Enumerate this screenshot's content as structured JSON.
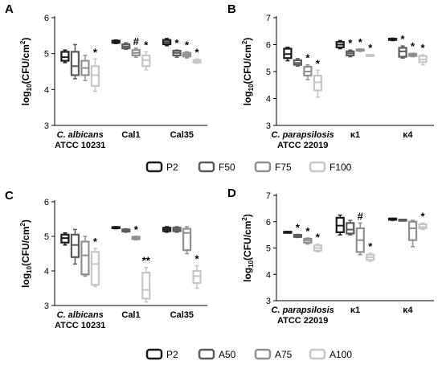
{
  "figure": {
    "legend_top": [
      {
        "label": "P2",
        "color": "#1a1a1a"
      },
      {
        "label": "F50",
        "color": "#5a5a5a"
      },
      {
        "label": "F75",
        "color": "#8f8f8f"
      },
      {
        "label": "F100",
        "color": "#c6c6c6"
      }
    ],
    "legend_bottom": [
      {
        "label": "P2",
        "color": "#1a1a1a"
      },
      {
        "label": "A50",
        "color": "#5a5a5a"
      },
      {
        "label": "A75",
        "color": "#8f8f8f"
      },
      {
        "label": "A100",
        "color": "#c6c6c6"
      }
    ]
  },
  "chart_data": [
    {
      "type": "boxplot",
      "panel": "A",
      "ylabel": "log10(CFU/cm2)",
      "ylim": [
        3,
        6
      ],
      "yticks": [
        3,
        4,
        5,
        6
      ],
      "groups": [
        {
          "label": "C. albicans",
          "label2": "ATCC 10231",
          "italic": true
        },
        {
          "label": "Cal1"
        },
        {
          "label": "Cal35"
        }
      ],
      "series": [
        {
          "name": "P2",
          "boxes": [
            {
              "min": 4.75,
              "q1": 4.8,
              "median": 4.9,
              "q3": 5.05,
              "max": 5.1
            },
            {
              "min": 5.28,
              "q1": 5.3,
              "median": 5.32,
              "q3": 5.36,
              "max": 5.38
            },
            {
              "min": 5.22,
              "q1": 5.26,
              "median": 5.32,
              "q3": 5.38,
              "max": 5.42
            }
          ]
        },
        {
          "name": "F50",
          "boxes": [
            {
              "min": 4.3,
              "q1": 4.4,
              "median": 4.65,
              "q3": 5.05,
              "max": 5.25,
              "annotation": ""
            },
            {
              "min": 5.12,
              "q1": 5.15,
              "median": 5.2,
              "q3": 5.26,
              "max": 5.3,
              "annotation": ""
            },
            {
              "min": 4.9,
              "q1": 4.95,
              "median": 5.02,
              "q3": 5.08,
              "max": 5.1,
              "annotation": "*"
            }
          ]
        },
        {
          "name": "F75",
          "boxes": [
            {
              "min": 4.25,
              "q1": 4.4,
              "median": 4.6,
              "q3": 4.8,
              "max": 4.95,
              "annotation": ""
            },
            {
              "min": 4.9,
              "q1": 4.95,
              "median": 5.02,
              "q3": 5.1,
              "max": 5.15,
              "annotation": "#"
            },
            {
              "min": 4.88,
              "q1": 4.92,
              "median": 4.97,
              "q3": 5.02,
              "max": 5.05,
              "annotation": "*"
            }
          ]
        },
        {
          "name": "F100",
          "boxes": [
            {
              "min": 3.95,
              "q1": 4.1,
              "median": 4.4,
              "q3": 4.65,
              "max": 4.85,
              "annotation": "*"
            },
            {
              "min": 4.55,
              "q1": 4.65,
              "median": 4.82,
              "q3": 4.95,
              "max": 5.05,
              "annotation": "*"
            },
            {
              "min": 4.73,
              "q1": 4.75,
              "median": 4.78,
              "q3": 4.82,
              "max": 4.85,
              "annotation": "*"
            }
          ]
        }
      ]
    },
    {
      "type": "boxplot",
      "panel": "B",
      "ylabel": "log10(CFU/cm2)",
      "ylim": [
        3,
        7
      ],
      "yticks": [
        3,
        4,
        5,
        6,
        7
      ],
      "groups": [
        {
          "label": "C. parapsilosis",
          "label2": "ATCC 22019",
          "italic": true
        },
        {
          "label": "κ1"
        },
        {
          "label": "κ4"
        }
      ],
      "series": [
        {
          "name": "P2",
          "boxes": [
            {
              "min": 5.4,
              "q1": 5.5,
              "median": 5.65,
              "q3": 5.85,
              "max": 5.9
            },
            {
              "min": 5.85,
              "q1": 5.9,
              "median": 6.0,
              "q3": 6.1,
              "max": 6.15
            },
            {
              "min": 6.15,
              "q1": 6.18,
              "median": 6.2,
              "q3": 6.22,
              "max": 6.24
            }
          ]
        },
        {
          "name": "F50",
          "boxes": [
            {
              "min": 5.2,
              "q1": 5.25,
              "median": 5.32,
              "q3": 5.42,
              "max": 5.48,
              "annotation": ""
            },
            {
              "min": 5.55,
              "q1": 5.6,
              "median": 5.68,
              "q3": 5.75,
              "max": 5.8,
              "annotation": "*"
            },
            {
              "min": 5.5,
              "q1": 5.55,
              "median": 5.75,
              "q3": 5.88,
              "max": 5.95,
              "annotation": "*"
            }
          ]
        },
        {
          "name": "F75",
          "boxes": [
            {
              "min": 4.7,
              "q1": 4.85,
              "median": 5.0,
              "q3": 5.18,
              "max": 5.25,
              "annotation": "*"
            },
            {
              "min": 5.75,
              "q1": 5.78,
              "median": 5.8,
              "q3": 5.82,
              "max": 5.84,
              "annotation": "*"
            },
            {
              "min": 5.55,
              "q1": 5.58,
              "median": 5.62,
              "q3": 5.66,
              "max": 5.68,
              "annotation": "*"
            }
          ]
        },
        {
          "name": "F100",
          "boxes": [
            {
              "min": 4.05,
              "q1": 4.3,
              "median": 4.6,
              "q3": 4.85,
              "max": 5.05,
              "annotation": "*"
            },
            {
              "min": 5.57,
              "q1": 5.58,
              "median": 5.6,
              "q3": 5.62,
              "max": 5.63,
              "annotation": "*"
            },
            {
              "min": 5.25,
              "q1": 5.35,
              "median": 5.45,
              "q3": 5.58,
              "max": 5.62,
              "annotation": "*"
            }
          ]
        }
      ]
    },
    {
      "type": "boxplot",
      "panel": "C",
      "ylabel": "log10(CFU/cm2)",
      "ylim": [
        3,
        6
      ],
      "yticks": [
        3,
        4,
        5,
        6
      ],
      "groups": [
        {
          "label": "C. albicans",
          "label2": "ATCC 10231",
          "italic": true
        },
        {
          "label": "Cal1"
        },
        {
          "label": "Cal35"
        }
      ],
      "series": [
        {
          "name": "P2",
          "boxes": [
            {
              "min": 4.75,
              "q1": 4.82,
              "median": 4.95,
              "q3": 5.05,
              "max": 5.1
            },
            {
              "min": 5.22,
              "q1": 5.24,
              "median": 5.25,
              "q3": 5.27,
              "max": 5.28
            },
            {
              "min": 5.12,
              "q1": 5.15,
              "median": 5.2,
              "q3": 5.25,
              "max": 5.28
            }
          ]
        },
        {
          "name": "A50",
          "boxes": [
            {
              "min": 4.2,
              "q1": 4.4,
              "median": 4.75,
              "q3": 5.05,
              "max": 5.2,
              "annotation": ""
            },
            {
              "min": 5.12,
              "q1": 5.14,
              "median": 5.17,
              "q3": 5.2,
              "max": 5.22,
              "annotation": ""
            },
            {
              "min": 5.12,
              "q1": 5.15,
              "median": 5.2,
              "q3": 5.25,
              "max": 5.28,
              "annotation": ""
            }
          ]
        },
        {
          "name": "A75",
          "boxes": [
            {
              "min": 3.85,
              "q1": 3.9,
              "median": 4.45,
              "q3": 4.85,
              "max": 5.0,
              "annotation": ""
            },
            {
              "min": 4.9,
              "q1": 4.92,
              "median": 4.96,
              "q3": 4.99,
              "max": 5.0,
              "annotation": "*"
            },
            {
              "min": 4.5,
              "q1": 4.6,
              "median": 5.1,
              "q3": 5.22,
              "max": 5.28,
              "annotation": ""
            }
          ]
        },
        {
          "name": "A100",
          "boxes": [
            {
              "min": 3.55,
              "q1": 3.6,
              "median": 4.2,
              "q3": 4.55,
              "max": 4.65,
              "annotation": "*"
            },
            {
              "min": 3.1,
              "q1": 3.2,
              "median": 3.45,
              "q3": 3.95,
              "max": 4.1,
              "annotation": "**"
            },
            {
              "min": 3.5,
              "q1": 3.65,
              "median": 3.85,
              "q3": 4.0,
              "max": 4.15,
              "annotation": "*"
            }
          ]
        }
      ]
    },
    {
      "type": "boxplot",
      "panel": "D",
      "ylabel": "log10(CFU/cm2)",
      "ylim": [
        3,
        7
      ],
      "yticks": [
        3,
        4,
        5,
        6,
        7
      ],
      "groups": [
        {
          "label": "C. parapsilosis",
          "label2": "ATCC 22019",
          "italic": true
        },
        {
          "label": "κ1"
        },
        {
          "label": "κ4"
        }
      ],
      "series": [
        {
          "name": "P2",
          "boxes": [
            {
              "min": 5.58,
              "q1": 5.59,
              "median": 5.6,
              "q3": 5.62,
              "max": 5.63
            },
            {
              "min": 5.5,
              "q1": 5.6,
              "median": 5.85,
              "q3": 6.15,
              "max": 6.25
            },
            {
              "min": 6.05,
              "q1": 6.08,
              "median": 6.1,
              "q3": 6.12,
              "max": 6.13
            }
          ]
        },
        {
          "name": "A50",
          "boxes": [
            {
              "min": 5.4,
              "q1": 5.42,
              "median": 5.45,
              "q3": 5.5,
              "max": 5.52,
              "annotation": "*"
            },
            {
              "min": 5.5,
              "q1": 5.55,
              "median": 5.7,
              "q3": 5.95,
              "max": 6.05,
              "annotation": ""
            },
            {
              "min": 6.05,
              "q1": 6.06,
              "median": 6.07,
              "q3": 6.08,
              "max": 6.09,
              "annotation": ""
            }
          ]
        },
        {
          "name": "A75",
          "boxes": [
            {
              "min": 5.15,
              "q1": 5.2,
              "median": 5.28,
              "q3": 5.35,
              "max": 5.38,
              "annotation": "*"
            },
            {
              "min": 4.75,
              "q1": 4.85,
              "median": 5.3,
              "q3": 5.75,
              "max": 5.95,
              "annotation": "#"
            },
            {
              "min": 5.05,
              "q1": 5.3,
              "median": 5.75,
              "q3": 6.0,
              "max": 6.05,
              "annotation": ""
            }
          ]
        },
        {
          "name": "A100",
          "boxes": [
            {
              "min": 4.85,
              "q1": 4.9,
              "median": 5.0,
              "q3": 5.1,
              "max": 5.15,
              "annotation": "*"
            },
            {
              "min": 4.5,
              "q1": 4.55,
              "median": 4.65,
              "q3": 4.75,
              "max": 4.8,
              "annotation": "*"
            },
            {
              "min": 5.7,
              "q1": 5.75,
              "median": 5.8,
              "q3": 5.9,
              "max": 5.95,
              "annotation": "*"
            }
          ]
        }
      ]
    }
  ]
}
